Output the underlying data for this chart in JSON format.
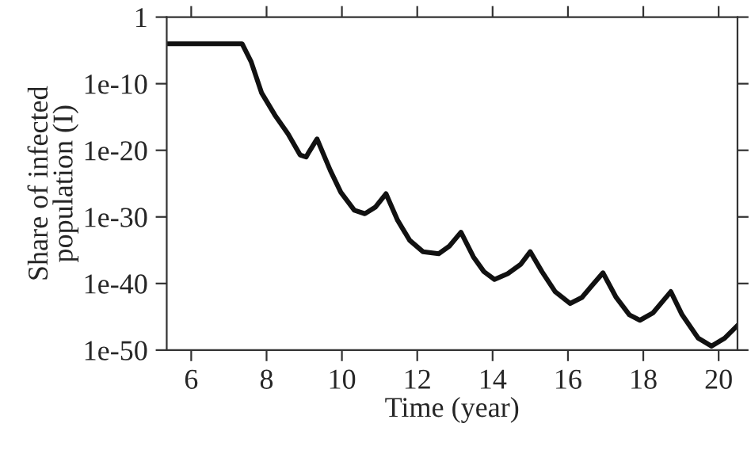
{
  "chart_data": {
    "type": "line",
    "xlabel": "Time (year)",
    "ylabel": "Share of infected\npopulation (I)",
    "log": "y",
    "grid": false,
    "marker": "none",
    "line_style": "solid",
    "xlim": [
      5.35,
      20.5
    ],
    "xticks": [
      6,
      8,
      10,
      12,
      14,
      16,
      18,
      20
    ],
    "ylim": [
      1e-50,
      1
    ],
    "yticks": [
      1,
      {
        "value": 1e-10,
        "label": "1e-10"
      },
      {
        "value": 1e-20,
        "label": "1e-20"
      },
      {
        "value": 1e-30,
        "label": "1e-30"
      },
      {
        "value": 1e-40,
        "label": "1e-40"
      },
      {
        "value": 1e-50,
        "label": "1e-50"
      }
    ],
    "x": [
      5.35,
      7.35,
      7.59,
      7.87,
      8.22,
      8.57,
      8.89,
      9.05,
      9.13,
      9.34,
      9.69,
      9.97,
      10.33,
      10.61,
      10.89,
      11.17,
      11.48,
      11.8,
      12.15,
      12.57,
      12.85,
      13.16,
      13.49,
      13.77,
      14.05,
      14.4,
      14.75,
      15.0,
      15.31,
      15.66,
      16.06,
      16.37,
      16.65,
      16.93,
      17.28,
      17.63,
      17.91,
      18.26,
      18.73,
      19.03,
      19.46,
      19.81,
      20.16,
      20.5
    ],
    "series": [
      {
        "color": "#111111",
        "values": [
          0.0001,
          0.0001,
          2e-07,
          4e-12,
          2e-15,
          3e-18,
          2e-21,
          1e-21,
          6e-21,
          5e-19,
          1e-23,
          5e-27,
          1e-29,
          3e-30,
          3e-29,
          3e-27,
          3e-31,
          3e-34,
          6e-36,
          3e-36,
          4e-35,
          5e-33,
          1e-36,
          6e-39,
          4e-40,
          3e-39,
          8e-38,
          6e-36,
          6e-39,
          6e-42,
          1e-43,
          8e-43,
          6e-41,
          4e-39,
          8e-43,
          2e-45,
          3e-46,
          4e-45,
          6e-42,
          2e-45,
          6e-49,
          4e-50,
          6e-49,
          5e-47
        ]
      }
    ]
  }
}
